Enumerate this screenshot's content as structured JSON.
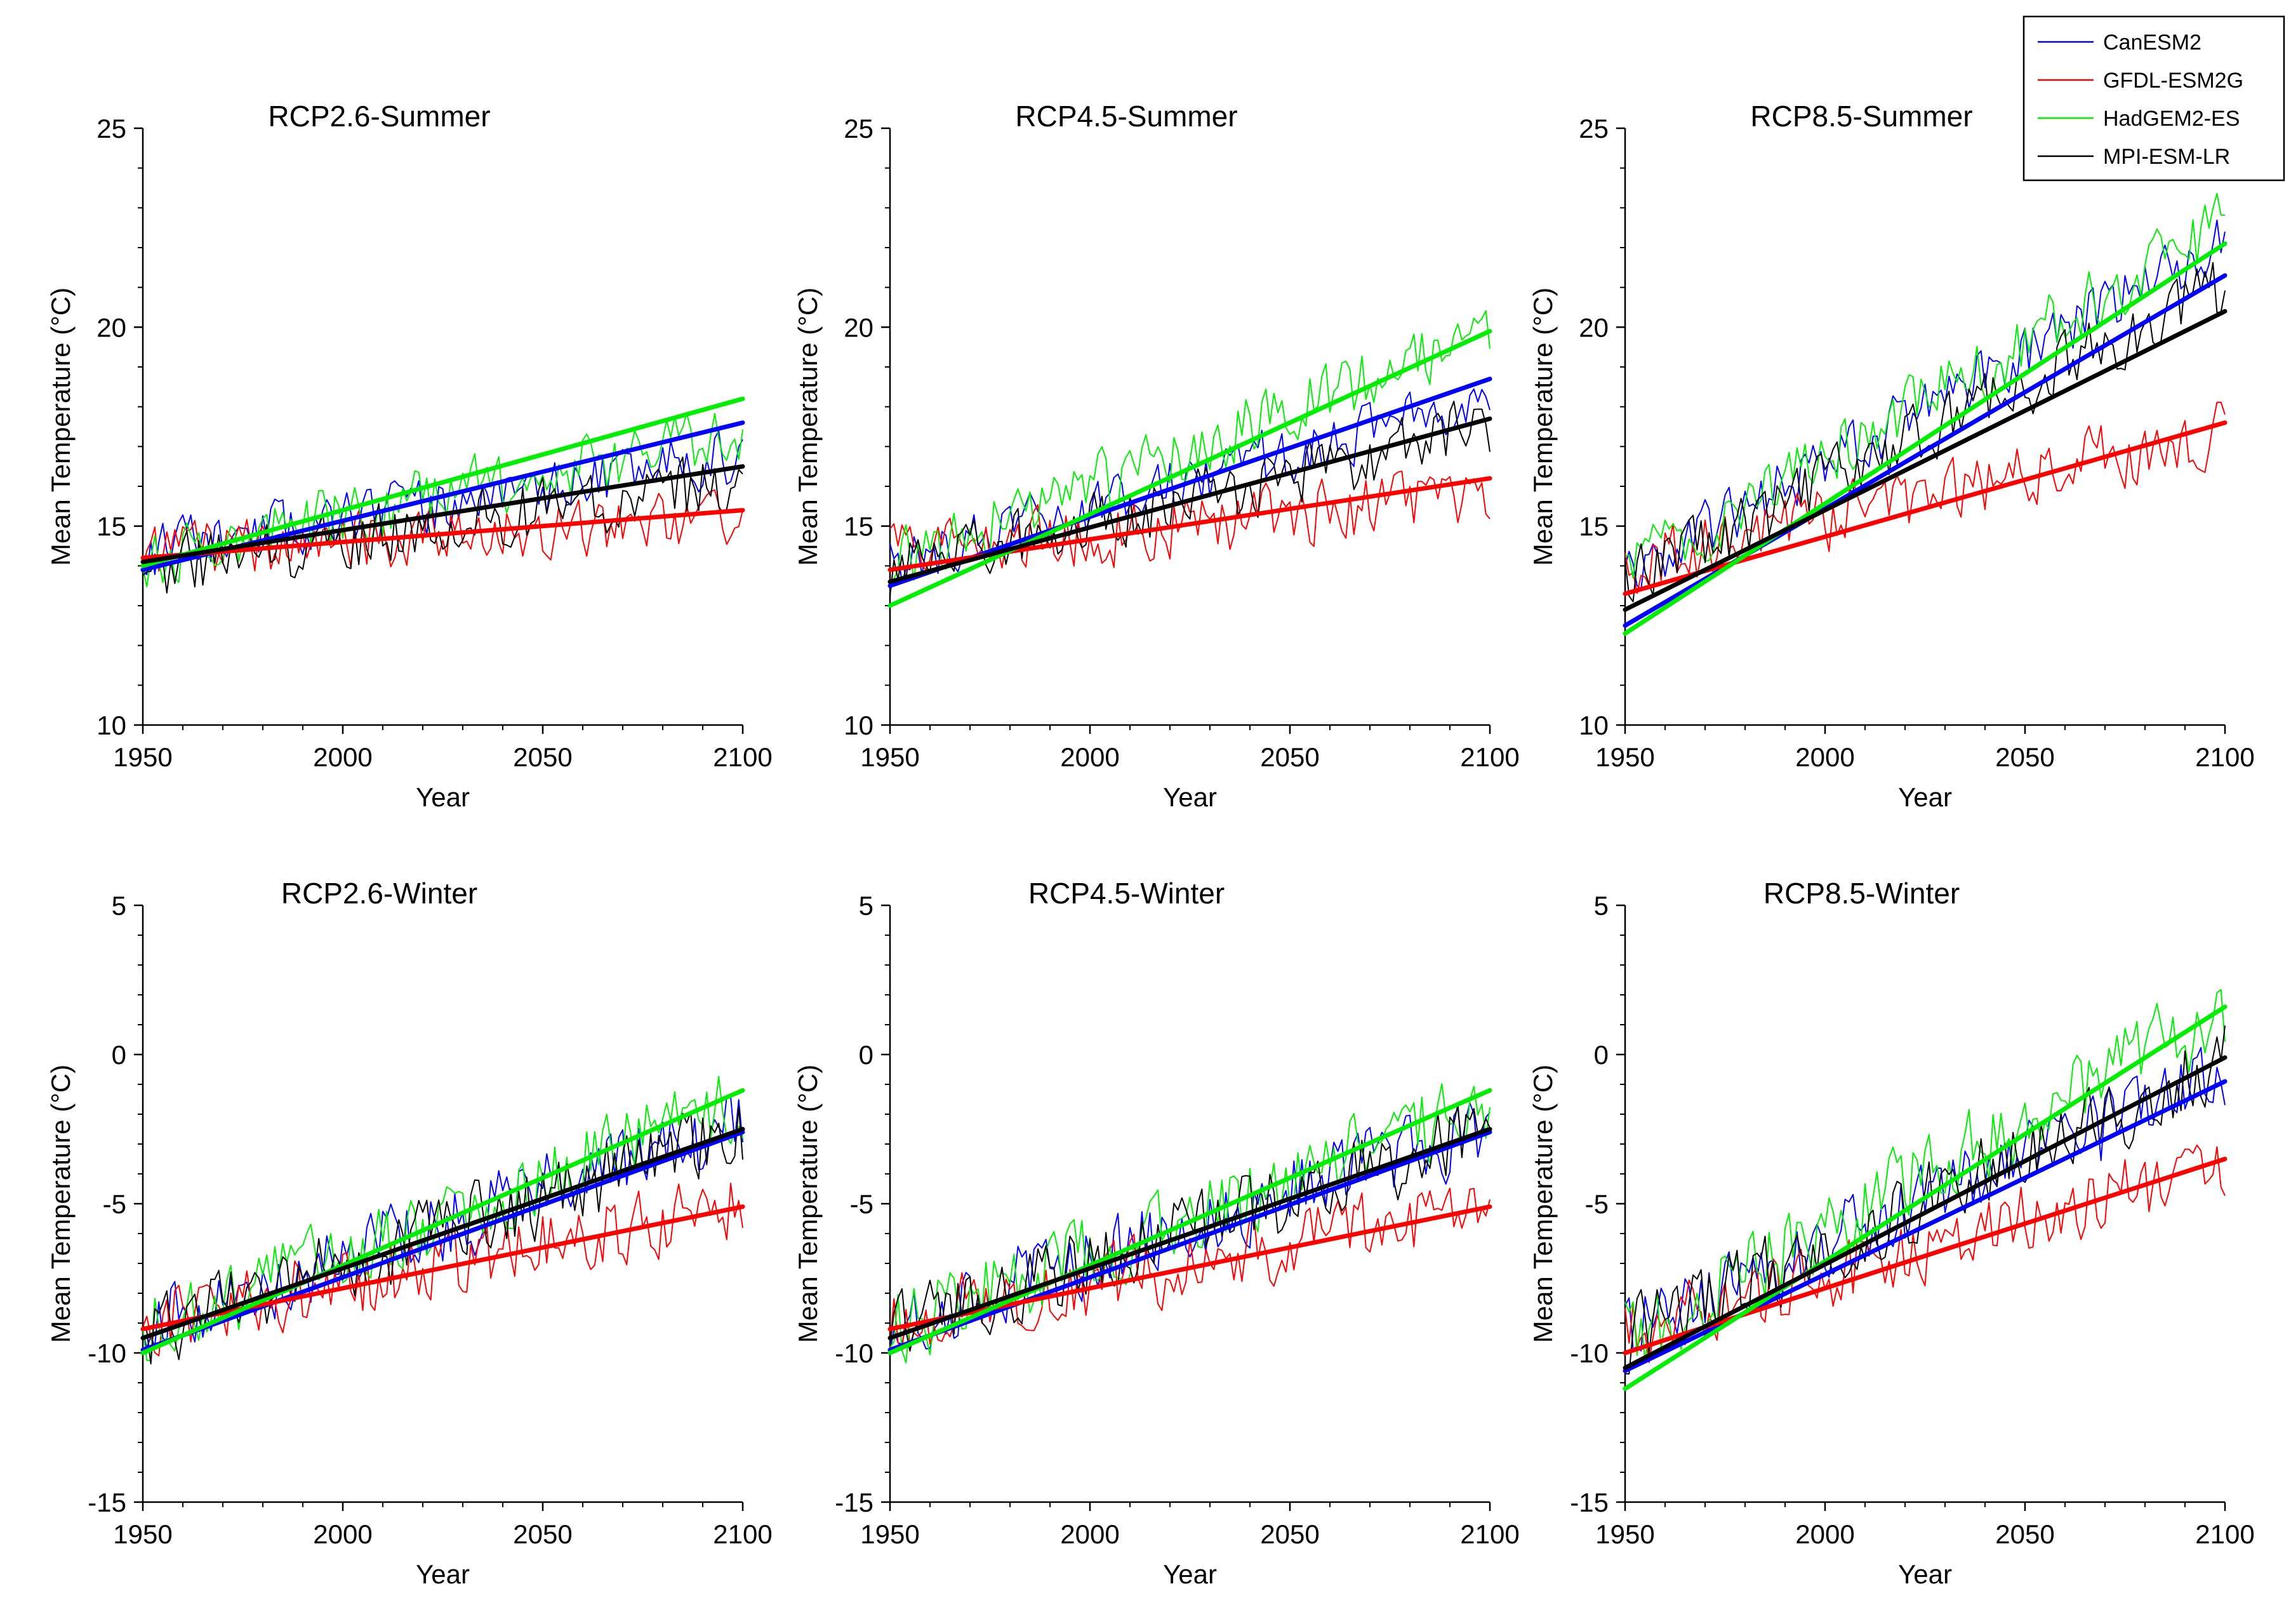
{
  "figure": {
    "legend": {
      "position": "top-right",
      "entries": [
        {
          "name": "CanESM2",
          "color": "#0000ff"
        },
        {
          "name": "GFDL-ESM2G",
          "color": "#ff0000"
        },
        {
          "name": "HadGEM2-ES",
          "color": "#00ee00"
        },
        {
          "name": "MPI-ESM-LR",
          "color": "#000000"
        }
      ]
    }
  },
  "chart_data": [
    {
      "type": "line",
      "title": "RCP2.6-Summer",
      "xlabel": "Year",
      "ylabel": "Mean Temperature (°C)",
      "xlim": [
        1950,
        2100
      ],
      "ylim": [
        10,
        25
      ],
      "xticks": [
        1950,
        2000,
        2050,
        2100
      ],
      "yticks": [
        10,
        15,
        20,
        25
      ],
      "xtick_labels": [
        "1950",
        "2000",
        "2050",
        "2100"
      ],
      "ytick_labels": [
        "10",
        "15",
        "20",
        "25"
      ],
      "series": [
        {
          "name": "CanESM2",
          "start": 14.3,
          "end": 16.8,
          "noise": 0.9,
          "trend_start": 13.9,
          "trend_end": 17.6,
          "seed": 11
        },
        {
          "name": "GFDL-ESM2G",
          "start": 14.3,
          "end": 15.2,
          "noise": 0.9,
          "trend_start": 14.2,
          "trend_end": 15.4,
          "seed": 12
        },
        {
          "name": "HadGEM2-ES",
          "start": 14.2,
          "end": 17.4,
          "noise": 1.0,
          "trend_start": 14.0,
          "trend_end": 18.2,
          "seed": 13
        },
        {
          "name": "MPI-ESM-LR",
          "start": 13.9,
          "end": 16.1,
          "noise": 1.0,
          "trend_start": 14.1,
          "trend_end": 16.5,
          "seed": 14
        }
      ]
    },
    {
      "type": "line",
      "title": "RCP4.5-Summer",
      "xlabel": "Year",
      "ylabel": "Mean Temperature (°C)",
      "xlim": [
        1950,
        2100
      ],
      "ylim": [
        10,
        25
      ],
      "xticks": [
        1950,
        2000,
        2050,
        2100
      ],
      "yticks": [
        10,
        15,
        20,
        25
      ],
      "xtick_labels": [
        "1950",
        "2000",
        "2050",
        "2100"
      ],
      "ytick_labels": [
        "10",
        "15",
        "20",
        "25"
      ],
      "series": [
        {
          "name": "CanESM2",
          "start": 14.0,
          "end": 18.3,
          "noise": 0.9,
          "trend_start": 13.5,
          "trend_end": 18.7,
          "seed": 21
        },
        {
          "name": "GFDL-ESM2G",
          "start": 14.2,
          "end": 15.8,
          "noise": 1.0,
          "trend_start": 13.9,
          "trend_end": 16.2,
          "seed": 22
        },
        {
          "name": "HadGEM2-ES",
          "start": 14.0,
          "end": 19.9,
          "noise": 1.0,
          "trend_start": 13.0,
          "trend_end": 19.9,
          "seed": 23
        },
        {
          "name": "MPI-ESM-LR",
          "start": 13.8,
          "end": 17.5,
          "noise": 1.0,
          "trend_start": 13.6,
          "trend_end": 17.7,
          "seed": 24
        }
      ]
    },
    {
      "type": "line",
      "title": "RCP8.5-Summer",
      "xlabel": "Year",
      "ylabel": "Mean Temperature (°C)",
      "xlim": [
        1950,
        2100
      ],
      "ylim": [
        10,
        25
      ],
      "xticks": [
        1950,
        2000,
        2050,
        2100
      ],
      "yticks": [
        10,
        15,
        20,
        25
      ],
      "xtick_labels": [
        "1950",
        "2000",
        "2050",
        "2100"
      ],
      "ytick_labels": [
        "10",
        "15",
        "20",
        "25"
      ],
      "series": [
        {
          "name": "CanESM2",
          "start": 13.8,
          "end": 22.2,
          "noise": 0.9,
          "trend_start": 12.5,
          "trend_end": 21.3,
          "seed": 31
        },
        {
          "name": "GFDL-ESM2G",
          "start": 14.0,
          "end": 17.4,
          "noise": 1.0,
          "trend_start": 13.3,
          "trend_end": 17.6,
          "seed": 32
        },
        {
          "name": "HadGEM2-ES",
          "start": 13.8,
          "end": 22.6,
          "noise": 1.0,
          "trend_start": 12.3,
          "trend_end": 22.1,
          "seed": 33
        },
        {
          "name": "MPI-ESM-LR",
          "start": 13.6,
          "end": 21.0,
          "noise": 1.0,
          "trend_start": 12.9,
          "trend_end": 20.4,
          "seed": 34
        }
      ]
    },
    {
      "type": "line",
      "title": "RCP2.6-Winter",
      "xlabel": "Year",
      "ylabel": "Mean Temperature (°C)",
      "xlim": [
        1950,
        2100
      ],
      "ylim": [
        -15,
        5
      ],
      "xticks": [
        1950,
        2000,
        2050,
        2100
      ],
      "yticks": [
        -15,
        -10,
        -5,
        0,
        5
      ],
      "xtick_labels": [
        "1950",
        "2000",
        "2050",
        "2100"
      ],
      "ytick_labels": [
        "-15",
        "-10",
        "-5",
        "0",
        "5"
      ],
      "series": [
        {
          "name": "CanESM2",
          "start": -9.0,
          "end": -2.4,
          "noise": 1.6,
          "trend_start": -9.9,
          "trend_end": -2.6,
          "seed": 41
        },
        {
          "name": "GFDL-ESM2G",
          "start": -9.0,
          "end": -5.0,
          "noise": 1.5,
          "trend_start": -9.2,
          "trend_end": -5.1,
          "seed": 42
        },
        {
          "name": "HadGEM2-ES",
          "start": -9.2,
          "end": -1.6,
          "noise": 1.6,
          "trend_start": -10.0,
          "trend_end": -1.2,
          "seed": 43
        },
        {
          "name": "MPI-ESM-LR",
          "start": -9.3,
          "end": -2.6,
          "noise": 1.6,
          "trend_start": -9.5,
          "trend_end": -2.5,
          "seed": 44
        }
      ]
    },
    {
      "type": "line",
      "title": "RCP4.5-Winter",
      "xlabel": "Year",
      "ylabel": "Mean Temperature (°C)",
      "xlim": [
        1950,
        2100
      ],
      "ylim": [
        -15,
        5
      ],
      "xticks": [
        1950,
        2000,
        2050,
        2100
      ],
      "yticks": [
        -15,
        -10,
        -5,
        0,
        5
      ],
      "xtick_labels": [
        "1950",
        "2000",
        "2050",
        "2100"
      ],
      "ytick_labels": [
        "-15",
        "-10",
        "-5",
        "0",
        "5"
      ],
      "series": [
        {
          "name": "CanESM2",
          "start": -9.0,
          "end": -2.4,
          "noise": 1.6,
          "trend_start": -9.9,
          "trend_end": -2.6,
          "seed": 51
        },
        {
          "name": "GFDL-ESM2G",
          "start": -9.0,
          "end": -5.0,
          "noise": 1.5,
          "trend_start": -9.2,
          "trend_end": -5.1,
          "seed": 52
        },
        {
          "name": "HadGEM2-ES",
          "start": -9.2,
          "end": -1.6,
          "noise": 1.6,
          "trend_start": -10.0,
          "trend_end": -1.2,
          "seed": 53
        },
        {
          "name": "MPI-ESM-LR",
          "start": -9.3,
          "end": -2.6,
          "noise": 1.6,
          "trend_start": -9.5,
          "trend_end": -2.5,
          "seed": 54
        }
      ]
    },
    {
      "type": "line",
      "title": "RCP8.5-Winter",
      "xlabel": "Year",
      "ylabel": "Mean Temperature (°C)",
      "xlim": [
        1950,
        2100
      ],
      "ylim": [
        -15,
        5
      ],
      "xticks": [
        1950,
        2000,
        2050,
        2100
      ],
      "yticks": [
        -15,
        -10,
        -5,
        0,
        5
      ],
      "xtick_labels": [
        "1950",
        "2000",
        "2050",
        "2100"
      ],
      "ytick_labels": [
        "-15",
        "-10",
        "-5",
        "0",
        "5"
      ],
      "series": [
        {
          "name": "CanESM2",
          "start": -9.2,
          "end": -0.8,
          "noise": 1.6,
          "trend_start": -10.6,
          "trend_end": -0.9,
          "seed": 61
        },
        {
          "name": "GFDL-ESM2G",
          "start": -9.4,
          "end": -3.6,
          "noise": 1.5,
          "trend_start": -10.0,
          "trend_end": -3.5,
          "seed": 62
        },
        {
          "name": "HadGEM2-ES",
          "start": -9.5,
          "end": 1.4,
          "noise": 1.7,
          "trend_start": -11.2,
          "trend_end": 1.6,
          "seed": 63
        },
        {
          "name": "MPI-ESM-LR",
          "start": -9.6,
          "end": -0.2,
          "noise": 1.6,
          "trend_start": -10.5,
          "trend_end": -0.1,
          "seed": 64
        }
      ]
    }
  ]
}
